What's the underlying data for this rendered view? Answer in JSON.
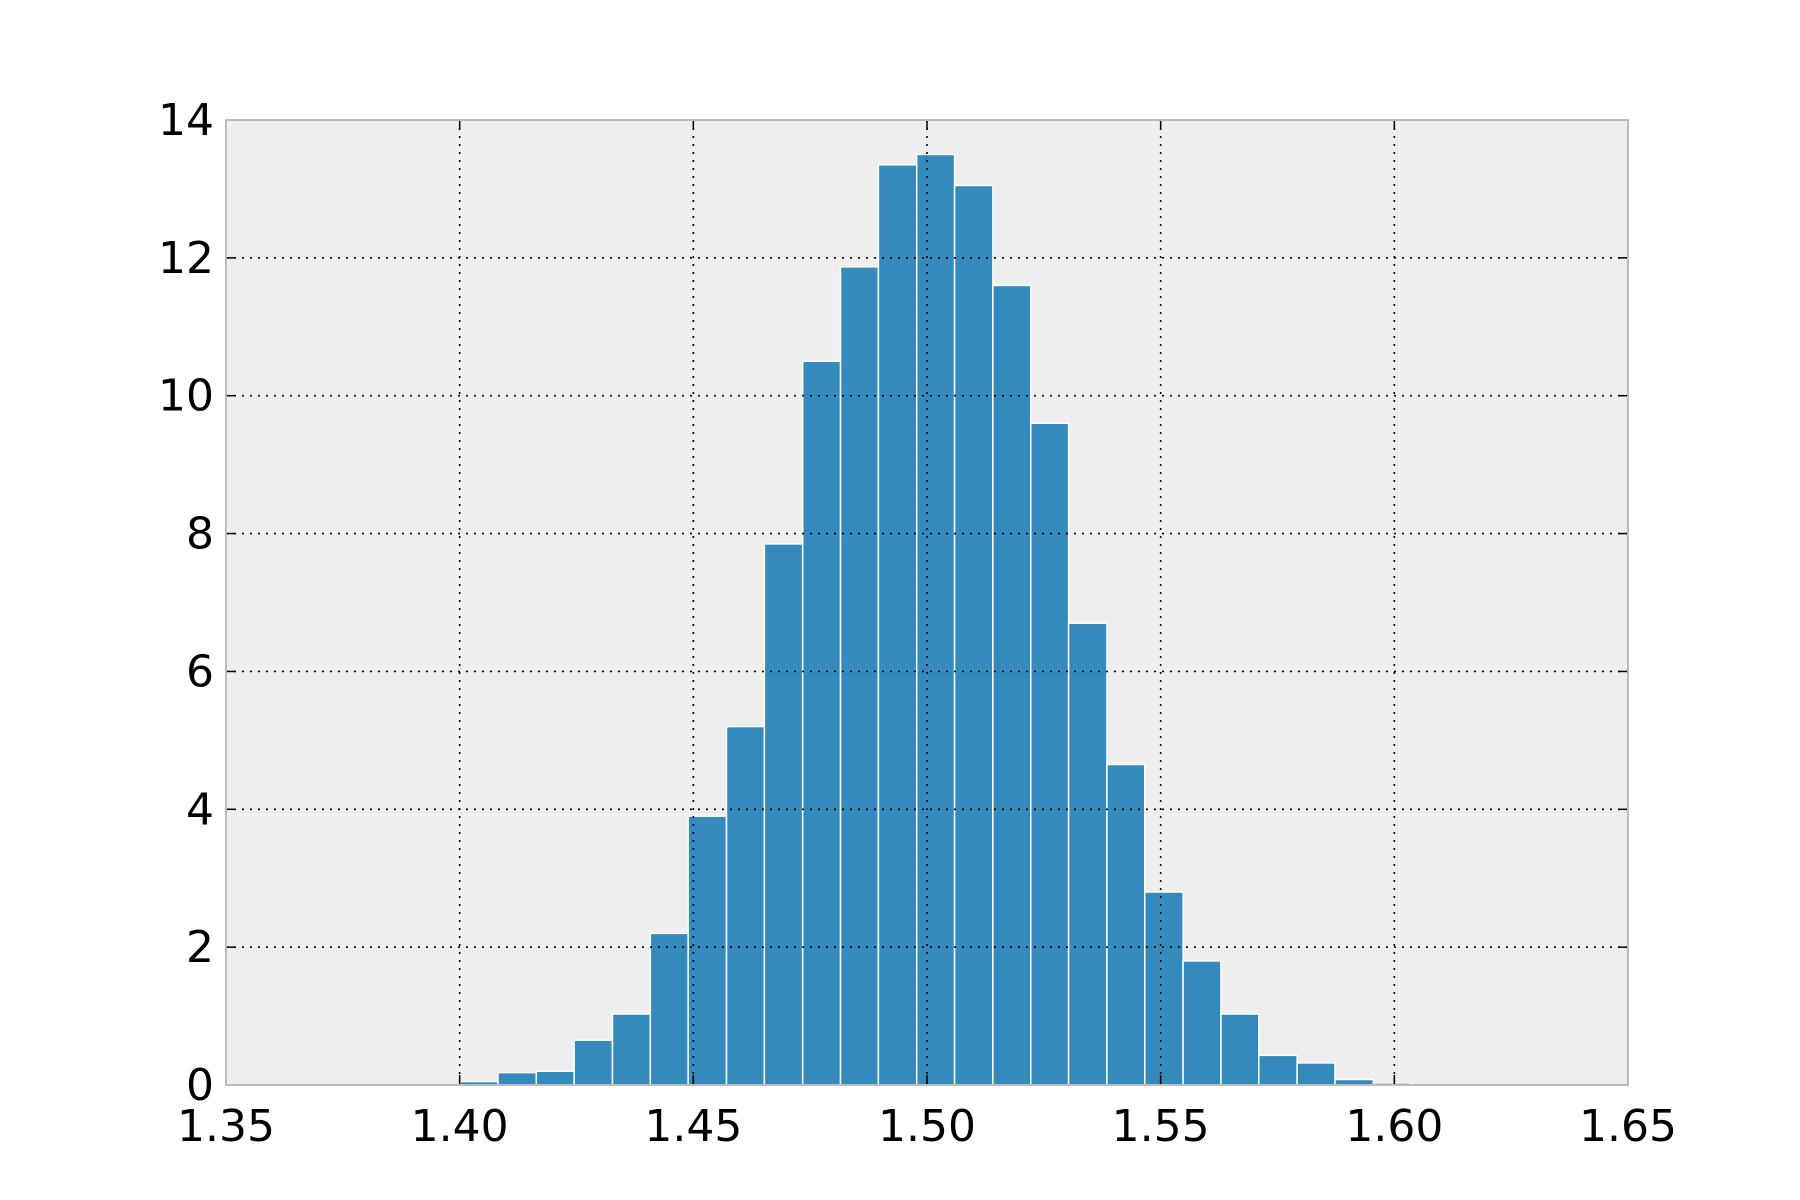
{
  "chart_data": {
    "type": "histogram",
    "bins": [
      1.4001,
      1.4082,
      1.4164,
      1.4245,
      1.4327,
      1.4408,
      1.4489,
      1.4571,
      1.4652,
      1.4734,
      1.4815,
      1.4896,
      1.4978,
      1.5059,
      1.5141,
      1.5222,
      1.5303,
      1.5385,
      1.5466,
      1.5548,
      1.5629,
      1.571,
      1.5792,
      1.5873,
      1.5955,
      1.6036
    ],
    "values": [
      0.05,
      0.18,
      0.2,
      0.65,
      1.03,
      2.2,
      3.9,
      5.2,
      7.85,
      10.5,
      11.87,
      13.35,
      13.5,
      13.05,
      11.6,
      9.6,
      6.7,
      4.65,
      2.8,
      1.8,
      1.03,
      0.43,
      0.32,
      0.08,
      0.03
    ],
    "color": "#348abd",
    "xlim": [
      1.35,
      1.65
    ],
    "xticks": [
      1.35,
      {
        "value": 1.4,
        "label": "1.40"
      },
      1.45,
      {
        "value": 1.5,
        "label": "1.50"
      },
      1.55,
      {
        "value": 1.6,
        "label": "1.60"
      },
      1.65
    ],
    "ylim": [
      0,
      14
    ],
    "yticks": [
      0,
      2,
      4,
      6,
      8,
      10,
      12,
      14
    ],
    "grid": true
  }
}
